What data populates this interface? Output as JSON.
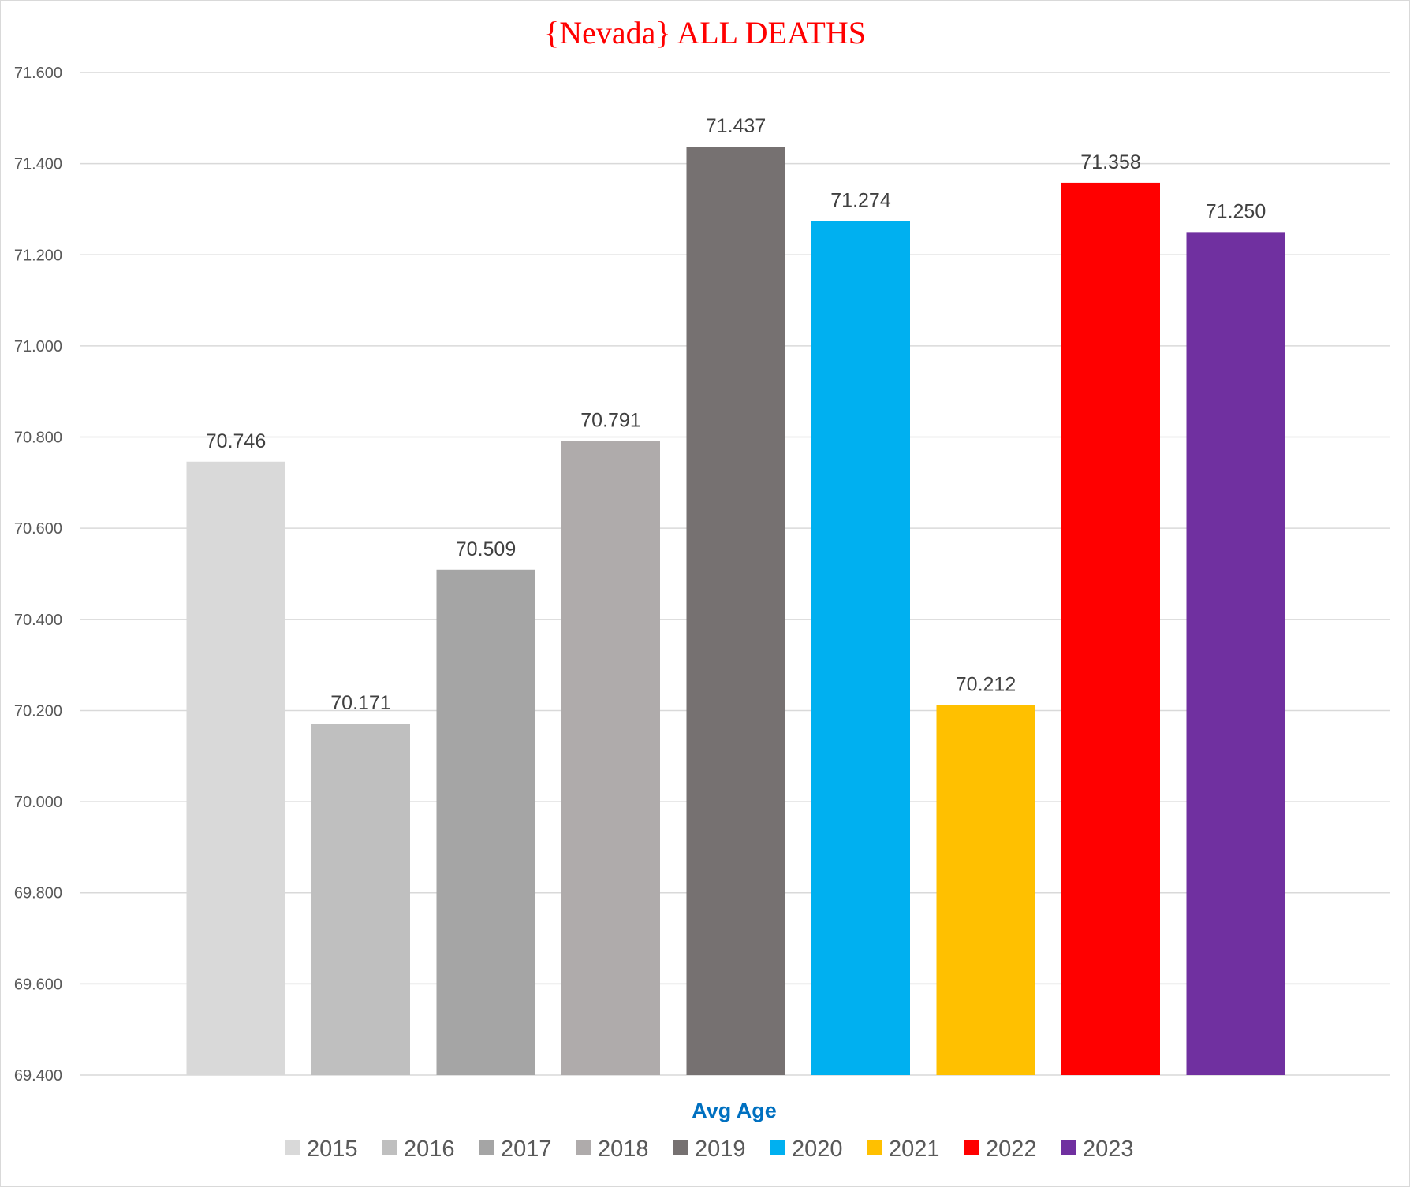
{
  "chart_data": {
    "type": "bar",
    "title": "{Nevada}   ALL DEATHS",
    "xlabel": "Avg Age",
    "ylabel": "",
    "ylim": [
      69.4,
      71.6
    ],
    "y_ticks": [
      "69.400",
      "69.600",
      "69.800",
      "70.000",
      "70.200",
      "70.400",
      "70.600",
      "70.800",
      "71.000",
      "71.200",
      "71.400",
      "71.600"
    ],
    "y_tick_values": [
      69.4,
      69.6,
      69.8,
      70.0,
      70.2,
      70.4,
      70.6,
      70.8,
      71.0,
      71.2,
      71.4,
      71.6
    ],
    "grid": true,
    "legend_position": "bottom",
    "series": [
      {
        "name": "2015",
        "value": 70.746,
        "label": "70.746",
        "color": "#d9d9d9"
      },
      {
        "name": "2016",
        "value": 70.171,
        "label": "70.171",
        "color": "#bfbfbf"
      },
      {
        "name": "2017",
        "value": 70.509,
        "label": "70.509",
        "color": "#a5a5a5"
      },
      {
        "name": "2018",
        "value": 70.791,
        "label": "70.791",
        "color": "#afabab"
      },
      {
        "name": "2019",
        "value": 71.437,
        "label": "71.437",
        "color": "#767171"
      },
      {
        "name": "2020",
        "value": 71.274,
        "label": "71.274",
        "color": "#00b0f0"
      },
      {
        "name": "2021",
        "value": 70.212,
        "label": "70.212",
        "color": "#ffc000"
      },
      {
        "name": "2022",
        "value": 71.358,
        "label": "71.358",
        "color": "#ff0000"
      },
      {
        "name": "2023",
        "value": 71.25,
        "label": "71.250",
        "color": "#7030a0"
      }
    ]
  }
}
